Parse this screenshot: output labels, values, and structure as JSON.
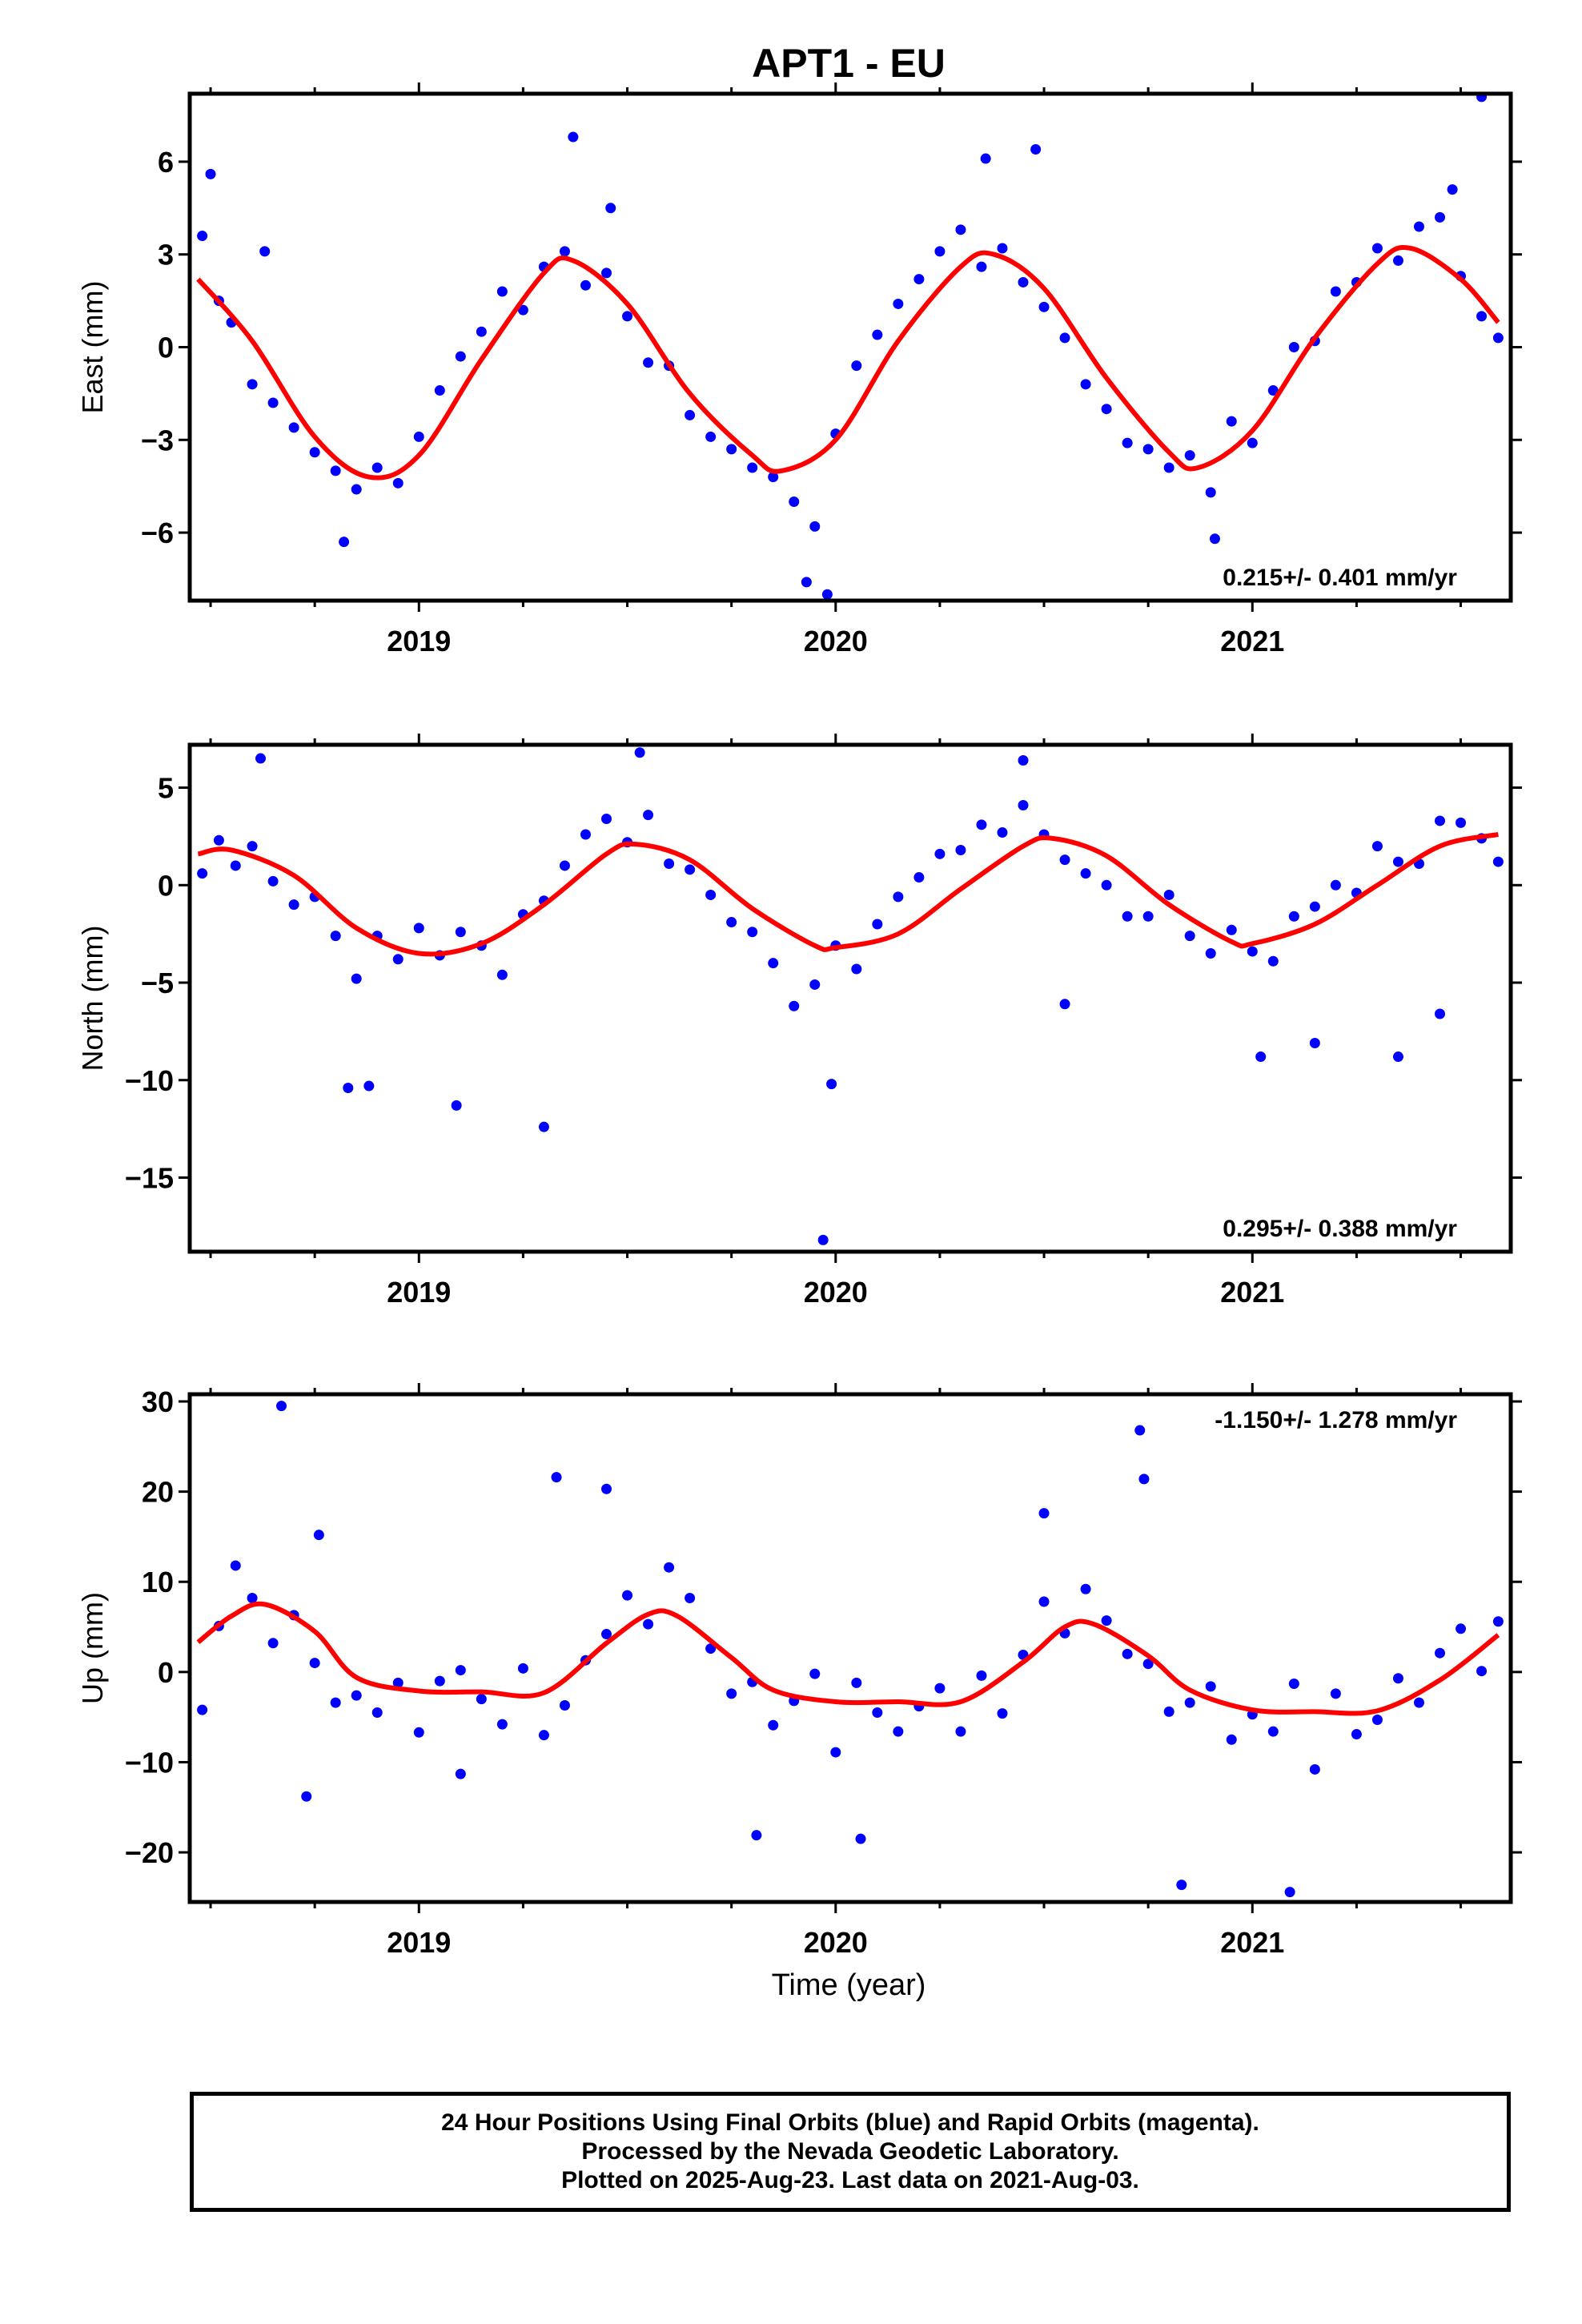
{
  "title": "APT1 - EU",
  "xlabel": "Time (year)",
  "footer": {
    "line1": "24 Hour Positions Using Final Orbits (blue) and Rapid Orbits (magenta).",
    "line2": "Processed by the Nevada Geodetic Laboratory.",
    "line3": "Plotted on 2025-Aug-23. Last data on 2021-Aug-03."
  },
  "colors": {
    "points": "#0000ff",
    "fit": "#ff0000",
    "axes": "#000000"
  },
  "chart_data": [
    {
      "type": "scatter",
      "ylabel": "East (mm)",
      "rate": "0.215+/- 0.401 mm/yr",
      "xlim": [
        2018.45,
        2021.62
      ],
      "ylim": [
        -8.2,
        8.2
      ],
      "xticks": [
        2019,
        2020,
        2021
      ],
      "yticks": [
        -6,
        -3,
        0,
        3,
        6
      ],
      "ytick_labels": [
        "−6",
        "−3",
        "0",
        "3",
        "6"
      ],
      "fit": {
        "x": [
          2018.47,
          2018.6,
          2018.75,
          2018.88,
          2019.0,
          2019.15,
          2019.3,
          2019.37,
          2019.5,
          2019.65,
          2019.8,
          2019.87,
          2020.0,
          2020.15,
          2020.3,
          2020.38,
          2020.5,
          2020.65,
          2020.8,
          2020.87,
          2021.0,
          2021.15,
          2021.3,
          2021.38,
          2021.5,
          2021.59
        ],
        "y": [
          2.2,
          0.2,
          -2.9,
          -4.2,
          -3.5,
          -0.4,
          2.4,
          2.8,
          1.4,
          -1.5,
          -3.5,
          -4.0,
          -3.0,
          0.2,
          2.6,
          3.0,
          1.9,
          -1.0,
          -3.4,
          -3.9,
          -2.7,
          0.3,
          2.7,
          3.2,
          2.2,
          0.8
        ]
      },
      "series": [
        {
          "name": "Final Orbits",
          "x": [
            2018.48,
            2018.52,
            2018.55,
            2018.6,
            2018.65,
            2018.7,
            2018.75,
            2018.8,
            2018.85,
            2018.9,
            2018.95,
            2019.0,
            2019.05,
            2019.1,
            2019.15,
            2019.2,
            2019.25,
            2019.3,
            2019.35,
            2019.4,
            2019.45,
            2019.5,
            2019.55,
            2019.6,
            2019.65,
            2019.7,
            2019.75,
            2019.8,
            2019.85,
            2019.9,
            2019.95,
            2020.0,
            2020.05,
            2020.1,
            2020.15,
            2020.2,
            2020.25,
            2020.3,
            2020.35,
            2020.4,
            2020.45,
            2020.5,
            2020.55,
            2020.6,
            2020.65,
            2020.7,
            2020.75,
            2020.8,
            2020.85,
            2020.9,
            2020.95,
            2021.0,
            2021.05,
            2021.1,
            2021.15,
            2021.2,
            2021.25,
            2021.3,
            2021.35,
            2021.4,
            2021.45,
            2021.5,
            2021.55,
            2021.59,
            2018.5,
            2018.63,
            2018.82,
            2019.37,
            2019.46,
            2019.93,
            2019.98,
            2020.36,
            2020.48,
            2020.91,
            2021.48,
            2021.55
          ],
          "y": [
            3.6,
            1.5,
            0.8,
            -1.2,
            -1.8,
            -2.6,
            -3.4,
            -4.0,
            -4.6,
            -3.9,
            -4.4,
            -2.9,
            -1.4,
            -0.3,
            0.5,
            1.8,
            1.2,
            2.6,
            3.1,
            2.0,
            2.4,
            1.0,
            -0.5,
            -0.6,
            -2.2,
            -2.9,
            -3.3,
            -3.9,
            -4.2,
            -5.0,
            -5.8,
            -2.8,
            -0.6,
            0.4,
            1.4,
            2.2,
            3.1,
            3.8,
            2.6,
            3.2,
            2.1,
            1.3,
            0.3,
            -1.2,
            -2.0,
            -3.1,
            -3.3,
            -3.9,
            -3.5,
            -4.7,
            -2.4,
            -3.1,
            -1.4,
            0.0,
            0.2,
            1.8,
            2.1,
            3.2,
            2.8,
            3.9,
            4.2,
            2.3,
            1.0,
            0.3,
            5.6,
            3.1,
            -6.3,
            6.8,
            4.5,
            -7.6,
            -8.0,
            6.1,
            6.4,
            -6.2,
            5.1,
            8.1
          ]
        }
      ]
    },
    {
      "type": "scatter",
      "ylabel": "North (mm)",
      "rate": "0.295+/- 0.388 mm/yr",
      "xlim": [
        2018.45,
        2021.62
      ],
      "ylim": [
        -18.8,
        7.2
      ],
      "xticks": [
        2019,
        2020,
        2021
      ],
      "yticks": [
        -15,
        -10,
        -5,
        0,
        5
      ],
      "ytick_labels": [
        "−15",
        "−10",
        "−5",
        "0",
        "5"
      ],
      "fit": {
        "x": [
          2018.47,
          2018.55,
          2018.7,
          2018.85,
          2019.0,
          2019.15,
          2019.3,
          2019.45,
          2019.52,
          2019.65,
          2019.8,
          2019.95,
          2020.0,
          2020.15,
          2020.3,
          2020.45,
          2020.52,
          2020.65,
          2020.8,
          2020.95,
          2021.0,
          2021.15,
          2021.3,
          2021.45,
          2021.59
        ],
        "y": [
          1.6,
          1.8,
          0.5,
          -2.2,
          -3.5,
          -3.0,
          -1.0,
          1.6,
          2.1,
          1.3,
          -1.2,
          -3.1,
          -3.2,
          -2.5,
          -0.2,
          2.0,
          2.4,
          1.5,
          -1.0,
          -2.9,
          -3.0,
          -2.0,
          0.0,
          2.0,
          2.6
        ]
      },
      "series": [
        {
          "name": "Final Orbits",
          "x": [
            2018.48,
            2018.52,
            2018.56,
            2018.6,
            2018.65,
            2018.7,
            2018.75,
            2018.8,
            2018.85,
            2018.9,
            2018.95,
            2019.0,
            2019.05,
            2019.1,
            2019.15,
            2019.2,
            2019.25,
            2019.3,
            2019.35,
            2019.4,
            2019.45,
            2019.5,
            2019.55,
            2019.6,
            2019.65,
            2019.7,
            2019.75,
            2019.8,
            2019.85,
            2019.9,
            2019.95,
            2020.0,
            2020.05,
            2020.1,
            2020.15,
            2020.2,
            2020.25,
            2020.3,
            2020.35,
            2020.4,
            2020.45,
            2020.5,
            2020.55,
            2020.6,
            2020.65,
            2020.7,
            2020.75,
            2020.8,
            2020.85,
            2020.9,
            2020.95,
            2021.0,
            2021.05,
            2021.1,
            2021.15,
            2021.2,
            2021.25,
            2021.3,
            2021.35,
            2021.4,
            2021.45,
            2021.5,
            2021.55,
            2021.59,
            2018.62,
            2018.83,
            2018.88,
            2019.09,
            2019.3,
            2019.53,
            2019.97,
            2019.99,
            2020.45,
            2020.55,
            2021.02,
            2021.15,
            2021.35,
            2021.45
          ],
          "y": [
            0.6,
            2.3,
            1.0,
            2.0,
            0.2,
            -1.0,
            -0.6,
            -2.6,
            -4.8,
            -2.6,
            -3.8,
            -2.2,
            -3.6,
            -2.4,
            -3.1,
            -4.6,
            -1.5,
            -0.8,
            1.0,
            2.6,
            3.4,
            2.2,
            3.6,
            1.1,
            0.8,
            -0.5,
            -1.9,
            -2.4,
            -4.0,
            -6.2,
            -5.1,
            -3.1,
            -4.3,
            -2.0,
            -0.6,
            0.4,
            1.6,
            1.8,
            3.1,
            2.7,
            4.1,
            2.6,
            1.3,
            0.6,
            0.0,
            -1.6,
            -1.6,
            -0.5,
            -2.6,
            -3.5,
            -2.3,
            -3.4,
            -3.9,
            -1.6,
            -1.1,
            0.0,
            -0.4,
            2.0,
            1.2,
            1.1,
            3.3,
            3.2,
            2.4,
            1.2,
            6.5,
            -10.4,
            -10.3,
            -11.3,
            -12.4,
            6.8,
            -18.2,
            -10.2,
            6.4,
            -6.1,
            -8.8,
            -8.1,
            -8.8,
            -6.6
          ]
        }
      ]
    },
    {
      "type": "scatter",
      "ylabel": "Up (mm)",
      "rate": "-1.150+/- 1.278 mm/yr",
      "xlim": [
        2018.45,
        2021.62
      ],
      "ylim": [
        -25.5,
        30.8
      ],
      "xticks": [
        2019,
        2020,
        2021
      ],
      "yticks": [
        -20,
        -10,
        0,
        10,
        20,
        30
      ],
      "ytick_labels": [
        "−20",
        "−10",
        "0",
        "10",
        "20",
        "30"
      ],
      "fit": {
        "x": [
          2018.47,
          2018.55,
          2018.63,
          2018.75,
          2018.85,
          2019.0,
          2019.15,
          2019.3,
          2019.45,
          2019.55,
          2019.62,
          2019.75,
          2019.85,
          2020.0,
          2020.15,
          2020.3,
          2020.45,
          2020.55,
          2020.62,
          2020.75,
          2020.85,
          2021.0,
          2021.15,
          2021.3,
          2021.45,
          2021.59
        ],
        "y": [
          3.3,
          6.2,
          7.5,
          4.5,
          -0.6,
          -2.1,
          -2.2,
          -2.3,
          3.2,
          6.4,
          6.2,
          1.6,
          -2.0,
          -3.3,
          -3.3,
          -3.3,
          1.1,
          5.0,
          5.3,
          1.8,
          -2.0,
          -4.2,
          -4.4,
          -4.3,
          -0.9,
          4.1
        ]
      },
      "series": [
        {
          "name": "Final Orbits",
          "x": [
            2018.48,
            2018.52,
            2018.56,
            2018.6,
            2018.65,
            2018.7,
            2018.75,
            2018.8,
            2018.85,
            2018.9,
            2018.95,
            2019.0,
            2019.05,
            2019.1,
            2019.15,
            2019.2,
            2019.25,
            2019.3,
            2019.35,
            2019.4,
            2019.45,
            2019.5,
            2019.55,
            2019.6,
            2019.65,
            2019.7,
            2019.75,
            2019.8,
            2019.85,
            2019.9,
            2019.95,
            2020.0,
            2020.05,
            2020.1,
            2020.15,
            2020.2,
            2020.25,
            2020.3,
            2020.35,
            2020.4,
            2020.45,
            2020.5,
            2020.55,
            2020.6,
            2020.65,
            2020.7,
            2020.75,
            2020.8,
            2020.85,
            2020.9,
            2020.95,
            2021.0,
            2021.05,
            2021.1,
            2021.15,
            2021.2,
            2021.25,
            2021.3,
            2021.35,
            2021.4,
            2021.45,
            2021.5,
            2021.55,
            2021.59,
            2018.67,
            2018.73,
            2019.1,
            2019.33,
            2019.45,
            2019.81,
            2020.06,
            2020.5,
            2020.73,
            2020.74,
            2020.83,
            2021.09,
            2018.76
          ],
          "y": [
            -4.2,
            5.1,
            11.8,
            8.2,
            3.2,
            6.3,
            1.0,
            -3.4,
            -2.6,
            -4.5,
            -1.2,
            -6.7,
            -1.0,
            0.2,
            -3.0,
            -5.8,
            0.4,
            -7.0,
            -3.7,
            1.3,
            4.2,
            8.5,
            5.3,
            11.6,
            8.2,
            2.6,
            -2.4,
            -1.1,
            -5.9,
            -3.2,
            -0.2,
            -8.9,
            -1.2,
            -4.5,
            -6.6,
            -3.8,
            -1.8,
            -6.6,
            -0.4,
            -4.6,
            1.9,
            7.8,
            4.3,
            9.2,
            5.7,
            2.0,
            0.9,
            -4.4,
            -3.4,
            -1.6,
            -7.5,
            -4.7,
            -6.6,
            -1.3,
            -10.8,
            -2.4,
            -6.9,
            -5.3,
            -0.7,
            -3.4,
            2.1,
            4.8,
            0.1,
            5.6,
            29.5,
            -13.8,
            -11.3,
            21.6,
            20.3,
            -18.1,
            -18.5,
            17.6,
            26.8,
            21.4,
            -23.6,
            -24.4,
            15.2
          ]
        }
      ]
    }
  ]
}
